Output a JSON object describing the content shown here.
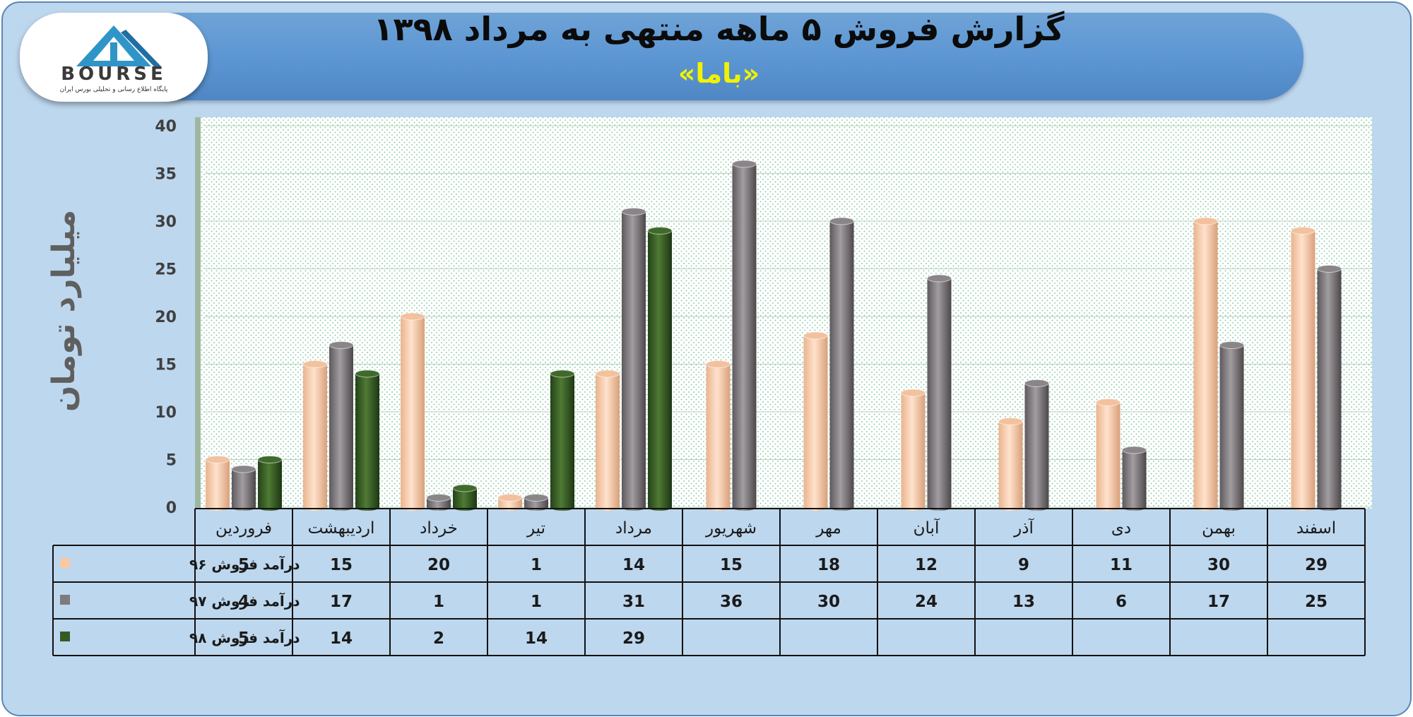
{
  "title": "گزارش فروش ۵ ماهه منتهی به مرداد ۱۳۹۸",
  "subtitle": "«باما»",
  "logo": {
    "text": "BOURSE",
    "subtext": "پایگاه اطلاع رسانی و تحلیلی بورس ایران"
  },
  "colors": {
    "series_96": "#f8c9a5",
    "series_97": "#7f7a7d",
    "series_98": "#375a22",
    "frame_bg": "#bdd7ee",
    "banner": "#5b95d2",
    "subtitle": "#f2f200"
  },
  "chart_data": {
    "type": "bar",
    "title": "گزارش فروش ۵ ماهه منتهی به مرداد ۱۳۹۸",
    "subtitle": "«باما»",
    "ylabel": "میلیارد تومان",
    "xlabel": "",
    "ylim": [
      0,
      40
    ],
    "yticks": [
      0,
      5,
      10,
      15,
      20,
      25,
      30,
      35,
      40
    ],
    "grid": true,
    "legend": "data-table",
    "categories": [
      "فروردین",
      "اردیبهشت",
      "خرداد",
      "تیر",
      "مرداد",
      "شهریور",
      "مهر",
      "آبان",
      "آذر",
      "دی",
      "بهمن",
      "اسفند"
    ],
    "series": [
      {
        "name": "درآمد فروش ۹۶",
        "values": [
          5,
          15,
          20,
          1,
          14,
          15,
          18,
          12,
          9,
          11,
          30,
          29
        ]
      },
      {
        "name": "درآمد فروش ۹۷",
        "values": [
          4,
          17,
          1,
          1,
          31,
          36,
          30,
          24,
          13,
          6,
          17,
          25
        ]
      },
      {
        "name": "درآمد فروش ۹۸",
        "values": [
          5,
          14,
          2,
          14,
          29,
          null,
          null,
          null,
          null,
          null,
          null,
          null
        ]
      }
    ]
  }
}
